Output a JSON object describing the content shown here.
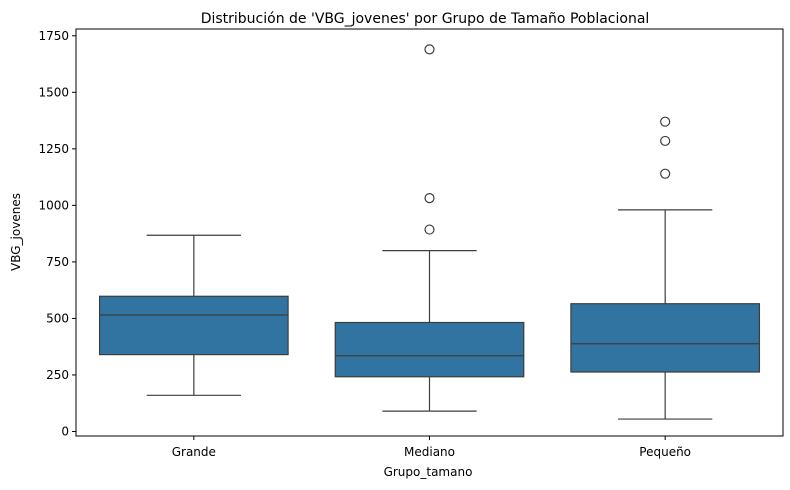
{
  "chart_data": {
    "type": "box",
    "title": "Distribución de 'VBG_jovenes' por Grupo de Tamaño Poblacional",
    "xlabel": "Grupo_tamano",
    "ylabel": "VBG_jovenes",
    "categories": [
      "Grande",
      "Mediano",
      "Pequeño"
    ],
    "ylim": [
      -20,
      1780
    ],
    "yticks": [
      0,
      250,
      500,
      750,
      1000,
      1250,
      1500,
      1750
    ],
    "grid": false,
    "legend": "none",
    "box_color": "#3274a1",
    "line_color": "#3d3d3d",
    "boxes": [
      {
        "category": "Grande",
        "whisker_low": 160,
        "q1": 340,
        "median": 515,
        "q3": 598,
        "whisker_high": 868,
        "outliers": []
      },
      {
        "category": "Mediano",
        "whisker_low": 90,
        "q1": 242,
        "median": 335,
        "q3": 482,
        "whisker_high": 800,
        "outliers": [
          893,
          1032,
          1690
        ]
      },
      {
        "category": "Pequeño",
        "whisker_low": 55,
        "q1": 263,
        "median": 388,
        "q3": 565,
        "whisker_high": 980,
        "outliers": [
          1140,
          1285,
          1370
        ]
      }
    ]
  }
}
